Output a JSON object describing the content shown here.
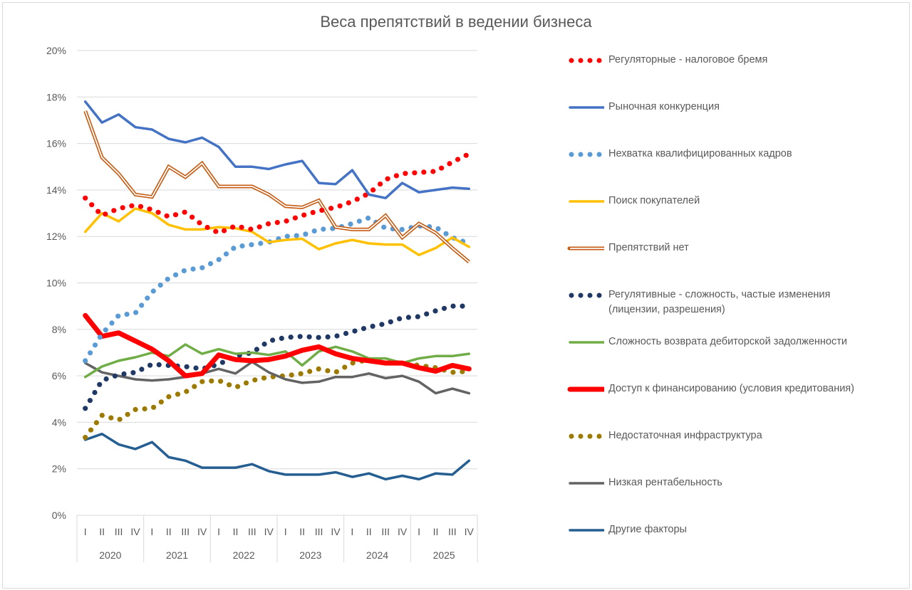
{
  "chart_data": {
    "type": "line",
    "title": "Веса препятствий в ведении бизнеса",
    "xlabel": "",
    "ylabel": "",
    "ylim": [
      0,
      20
    ],
    "y_unit": "%",
    "y_ticks": [
      "0%",
      "2%",
      "4%",
      "6%",
      "8%",
      "10%",
      "12%",
      "14%",
      "16%",
      "18%",
      "20%"
    ],
    "y_tick_values": [
      0,
      2,
      4,
      6,
      8,
      10,
      12,
      14,
      16,
      18,
      20
    ],
    "grid": true,
    "legend_position": "right",
    "years": [
      "2020",
      "2021",
      "2022",
      "2023",
      "2024",
      "2025"
    ],
    "quarters": [
      "I",
      "II",
      "III",
      "IV"
    ],
    "x": [
      "2020 I",
      "2020 II",
      "2020 III",
      "2020 IV",
      "2021 I",
      "2021 II",
      "2021 III",
      "2021 IV",
      "2022 I",
      "2022 II",
      "2022 III",
      "2022 IV",
      "2023 I",
      "2023 II",
      "2023 III",
      "2023 IV",
      "2024 I",
      "2024 II",
      "2024 III",
      "2024 IV",
      "2025 I",
      "2025 II",
      "2025 III",
      "2025 IV"
    ],
    "series": [
      {
        "name": "Регуляторные - налоговое бремя",
        "color": "#FF0000",
        "style": "dotted",
        "values": [
          13.65,
          12.9,
          13.2,
          13.35,
          13.15,
          12.85,
          13.05,
          12.5,
          12.15,
          12.45,
          12.3,
          12.55,
          12.65,
          12.9,
          13.1,
          13.25,
          13.5,
          13.85,
          14.45,
          14.7,
          14.75,
          14.8,
          15.2,
          15.55
        ]
      },
      {
        "name": "Рыночная конкуренция",
        "color": "#4472C4",
        "style": "solid",
        "values": [
          17.8,
          16.9,
          17.25,
          16.7,
          16.6,
          16.2,
          16.05,
          16.25,
          15.85,
          15.0,
          15.0,
          14.9,
          15.1,
          15.25,
          14.3,
          14.25,
          14.85,
          13.8,
          13.65,
          14.3,
          13.9,
          14.0,
          14.1,
          14.05
        ]
      },
      {
        "name": "Нехватка квалифицированных кадров",
        "color": "#5B9BD5",
        "style": "dotted",
        "values": [
          6.65,
          7.8,
          8.6,
          8.7,
          9.6,
          10.2,
          10.55,
          10.65,
          11.0,
          11.55,
          11.65,
          11.75,
          12.0,
          12.05,
          12.3,
          12.35,
          12.55,
          12.8,
          12.35,
          12.3,
          12.45,
          12.4,
          11.95,
          11.7
        ]
      },
      {
        "name": "Поиск покупателей",
        "color": "#FFC000",
        "style": "solid",
        "values": [
          12.2,
          13.0,
          12.65,
          13.2,
          13.0,
          12.5,
          12.3,
          12.3,
          12.4,
          12.35,
          12.2,
          11.75,
          11.85,
          11.9,
          11.45,
          11.7,
          11.85,
          11.7,
          11.65,
          11.65,
          11.2,
          11.5,
          11.95,
          11.55
        ]
      },
      {
        "name": "Препятствий нет",
        "color": "#C55A11",
        "style": "double",
        "values": [
          17.4,
          15.4,
          14.7,
          13.8,
          13.7,
          15.0,
          14.55,
          15.15,
          14.15,
          14.15,
          14.15,
          13.8,
          13.3,
          13.25,
          13.55,
          12.4,
          12.3,
          12.3,
          12.9,
          11.95,
          12.55,
          12.15,
          11.5,
          10.9
        ]
      },
      {
        "name": "Регулятивные - сложность, частые изменения (лицензии, разрешения)",
        "label_lines": [
          "Регулятивные - сложность, частые изменения",
          "(лицензии, разрешения)"
        ],
        "color": "#203864",
        "style": "dotted",
        "values": [
          4.6,
          5.8,
          6.05,
          6.15,
          6.5,
          6.45,
          6.4,
          6.3,
          6.5,
          6.85,
          7.0,
          7.5,
          7.65,
          7.7,
          7.65,
          7.7,
          7.9,
          8.1,
          8.25,
          8.5,
          8.55,
          8.8,
          9.0,
          9.0
        ]
      },
      {
        "name": "Сложность возврата дебиторской задолженности",
        "color": "#70AD47",
        "style": "solid",
        "values": [
          5.95,
          6.4,
          6.65,
          6.8,
          7.0,
          6.85,
          7.35,
          6.95,
          7.15,
          6.95,
          7.0,
          6.9,
          7.05,
          6.45,
          7.05,
          7.25,
          7.05,
          6.75,
          6.75,
          6.55,
          6.75,
          6.85,
          6.85,
          6.95
        ]
      },
      {
        "name": "Доступ к финансированию (условия кредитования)",
        "color": "#FF0000",
        "style": "thick",
        "values": [
          8.6,
          7.7,
          7.85,
          7.5,
          7.15,
          6.65,
          6.0,
          6.1,
          6.9,
          6.7,
          6.65,
          6.7,
          6.85,
          7.1,
          7.25,
          6.95,
          6.75,
          6.65,
          6.55,
          6.55,
          6.35,
          6.2,
          6.45,
          6.3
        ]
      },
      {
        "name": "Недостаточная инфраструктура",
        "color": "#9C7A00",
        "style": "dotted",
        "values": [
          3.35,
          4.3,
          4.1,
          4.55,
          4.6,
          5.1,
          5.3,
          5.75,
          5.8,
          5.5,
          5.8,
          5.95,
          6.0,
          6.1,
          6.3,
          6.15,
          6.55,
          6.7,
          6.55,
          6.55,
          6.45,
          6.35,
          6.15,
          6.2
        ]
      },
      {
        "name": "Низкая рентабельность",
        "color": "#636363",
        "style": "solid",
        "values": [
          6.55,
          6.15,
          6.0,
          5.85,
          5.8,
          5.85,
          5.95,
          6.1,
          6.3,
          6.1,
          6.6,
          6.15,
          5.85,
          5.7,
          5.75,
          5.95,
          5.95,
          6.1,
          5.9,
          6.0,
          5.75,
          5.25,
          5.45,
          5.25
        ]
      },
      {
        "name": "Другие факторы",
        "color": "#255E91",
        "style": "solid",
        "values": [
          3.25,
          3.5,
          3.05,
          2.85,
          3.15,
          2.5,
          2.35,
          2.05,
          2.05,
          2.05,
          2.2,
          1.9,
          1.75,
          1.75,
          1.75,
          1.85,
          1.65,
          1.8,
          1.55,
          1.7,
          1.55,
          1.8,
          1.75,
          2.35
        ]
      }
    ]
  }
}
